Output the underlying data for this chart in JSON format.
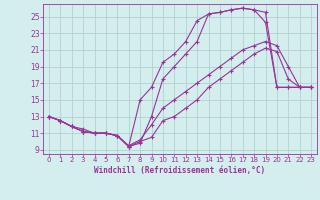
{
  "xlabel": "Windchill (Refroidissement éolien,°C)",
  "bg_color": "#d4eeee",
  "grid_color": "#aacccc",
  "line_color": "#993399",
  "xlim": [
    -0.5,
    23.5
  ],
  "ylim": [
    8.5,
    26.5
  ],
  "yticks": [
    9,
    11,
    13,
    15,
    17,
    19,
    21,
    23,
    25
  ],
  "xticks": [
    0,
    1,
    2,
    3,
    4,
    5,
    6,
    7,
    8,
    9,
    10,
    11,
    12,
    13,
    14,
    15,
    16,
    17,
    18,
    19,
    20,
    21,
    22,
    23
  ],
  "line1_x": [
    0,
    1,
    2,
    3,
    4,
    5,
    6,
    7,
    8,
    9,
    10,
    11,
    12,
    13,
    14,
    15,
    16,
    17,
    18,
    19,
    20,
    21,
    22,
    23
  ],
  "line1_y": [
    13.0,
    12.5,
    11.8,
    11.2,
    11.0,
    11.0,
    10.7,
    9.4,
    10.0,
    10.5,
    12.5,
    13.0,
    14.0,
    15.0,
    16.5,
    17.5,
    18.5,
    19.5,
    20.5,
    21.2,
    20.8,
    17.5,
    16.5,
    16.5
  ],
  "line2_x": [
    0,
    1,
    2,
    3,
    4,
    5,
    6,
    7,
    8,
    9,
    10,
    11,
    12,
    13,
    14,
    15,
    16,
    17,
    18,
    19,
    20,
    21,
    22,
    23
  ],
  "line2_y": [
    13.0,
    12.5,
    11.8,
    11.2,
    11.0,
    11.0,
    10.7,
    9.4,
    15.0,
    16.5,
    19.5,
    20.5,
    22.0,
    24.5,
    25.3,
    25.5,
    25.8,
    26.0,
    25.8,
    24.3,
    16.5,
    16.5,
    16.5,
    16.5
  ],
  "line3_x": [
    0,
    1,
    2,
    3,
    4,
    5,
    6,
    7,
    8,
    9,
    10,
    11,
    12,
    13,
    14,
    15,
    16,
    17,
    18,
    19,
    20,
    21,
    22,
    23
  ],
  "line3_y": [
    13.0,
    12.5,
    11.8,
    11.2,
    11.0,
    11.0,
    10.7,
    9.4,
    9.8,
    13.0,
    17.5,
    19.0,
    20.5,
    22.0,
    25.3,
    25.5,
    25.8,
    26.0,
    25.8,
    25.5,
    16.5,
    16.5,
    16.5,
    16.5
  ],
  "line4_x": [
    0,
    1,
    2,
    3,
    4,
    5,
    6,
    7,
    8,
    9,
    10,
    11,
    12,
    13,
    14,
    15,
    16,
    17,
    18,
    19,
    20,
    21,
    22,
    23
  ],
  "line4_y": [
    13.0,
    12.5,
    11.8,
    11.5,
    11.0,
    11.0,
    10.7,
    9.5,
    10.2,
    12.0,
    14.0,
    15.0,
    16.0,
    17.0,
    18.0,
    19.0,
    20.0,
    21.0,
    21.5,
    22.0,
    21.5,
    19.0,
    16.5,
    16.5
  ]
}
